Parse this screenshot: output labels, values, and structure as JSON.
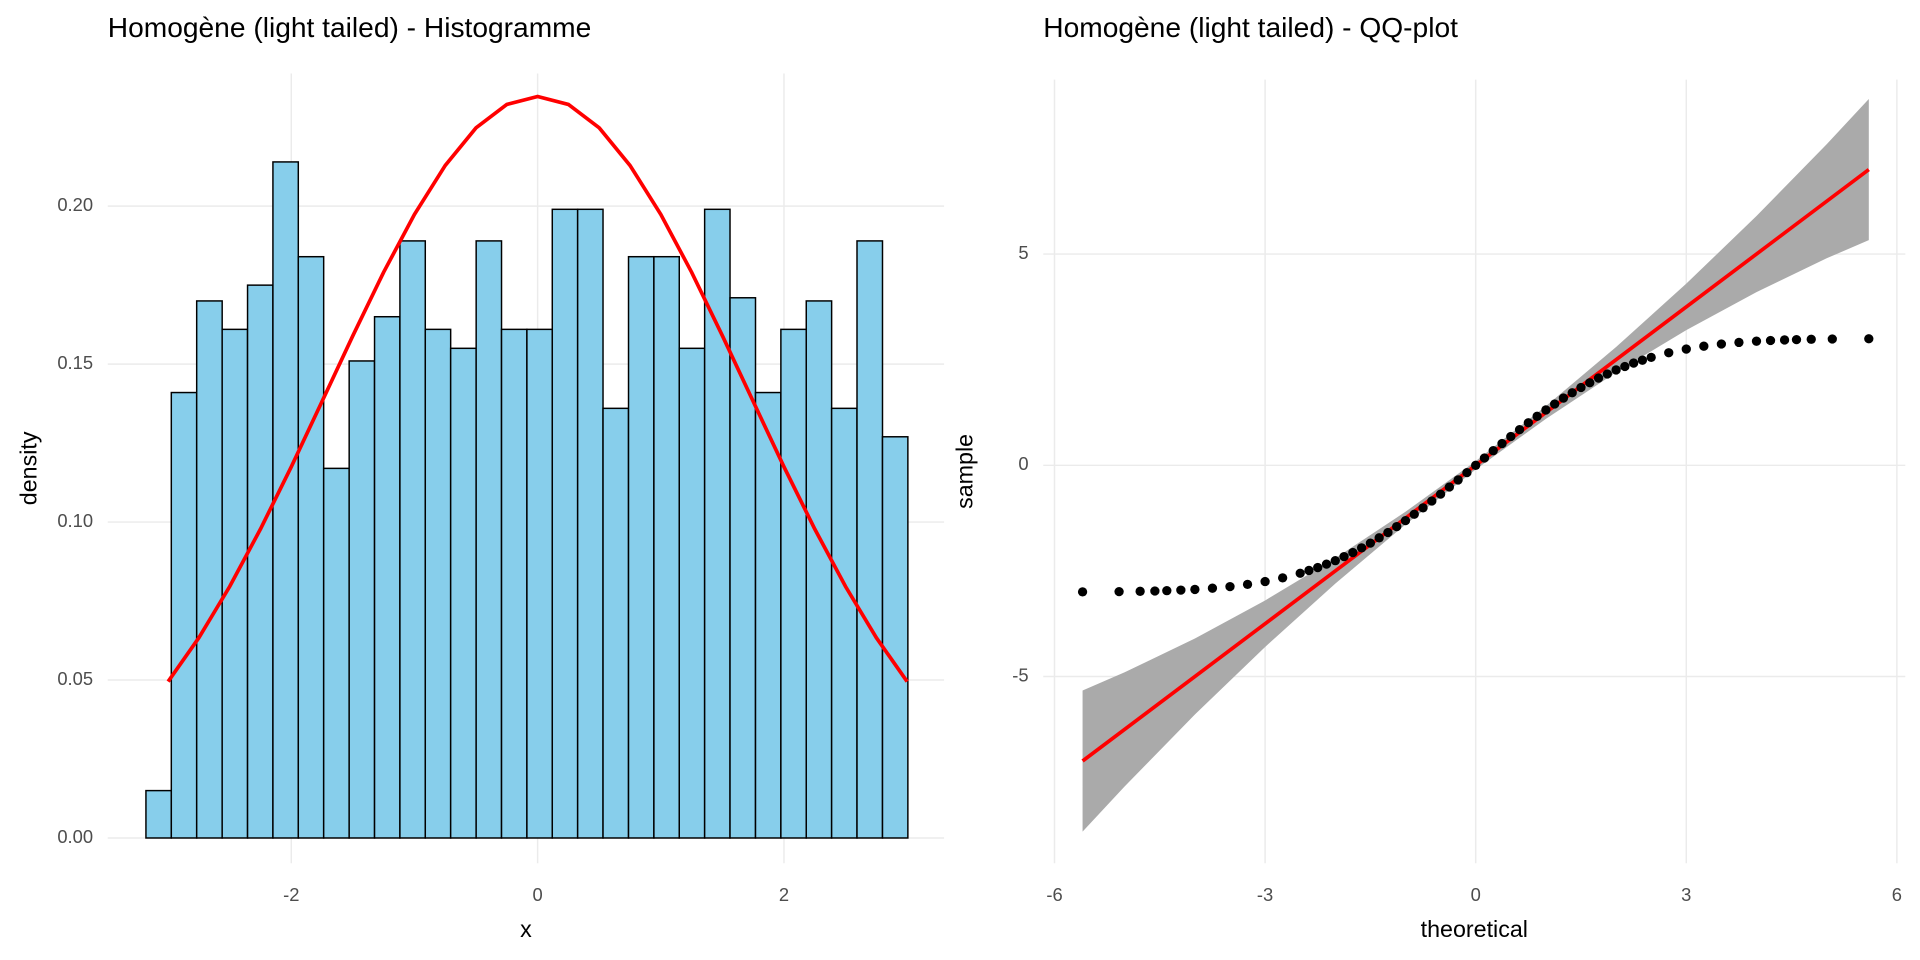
{
  "chart_data": [
    {
      "type": "histogram",
      "title": "Homogène (light tailed) - Histogramme",
      "xlabel": "x",
      "ylabel": "density",
      "bins": [
        -3.18,
        -2.974,
        -2.768,
        -2.561,
        -2.355,
        -2.149,
        -1.943,
        -1.737,
        -1.53,
        -1.324,
        -1.118,
        -0.912,
        -0.706,
        -0.499,
        -0.293,
        -0.087,
        0.119,
        0.325,
        0.531,
        0.738,
        0.944,
        1.15,
        1.356,
        1.562,
        1.769,
        1.975,
        2.181,
        2.387,
        2.593,
        2.8,
        3.006
      ],
      "values": [
        0.015,
        0.141,
        0.17,
        0.161,
        0.175,
        0.214,
        0.184,
        0.117,
        0.151,
        0.165,
        0.189,
        0.161,
        0.155,
        0.189,
        0.161,
        0.161,
        0.199,
        0.199,
        0.136,
        0.184,
        0.184,
        0.155,
        0.199,
        0.171,
        0.141,
        0.161,
        0.17,
        0.136,
        0.189,
        0.127
      ],
      "color": "#87ceeb",
      "density_curve": {
        "color": "#ff0000",
        "x": [
          -3,
          -2.75,
          -2.5,
          -2.25,
          -2,
          -1.75,
          -1.5,
          -1.25,
          -1,
          -0.75,
          -0.5,
          -0.25,
          0,
          0.25,
          0.5,
          0.75,
          1,
          1.25,
          1.5,
          1.75,
          2,
          2.25,
          2.5,
          2.75,
          3
        ],
        "values": [
          0.0495,
          0.0634,
          0.0796,
          0.0978,
          0.1175,
          0.1382,
          0.159,
          0.1791,
          0.1974,
          0.2129,
          0.2248,
          0.2322,
          0.2347,
          0.2322,
          0.2248,
          0.2129,
          0.1974,
          0.1791,
          0.159,
          0.1382,
          0.1175,
          0.0978,
          0.0796,
          0.0634,
          0.0495
        ]
      },
      "xlim": [
        -3.49,
        3.3
      ],
      "ylim": [
        -0.008,
        0.242
      ],
      "xticks": [
        -2,
        0,
        2
      ],
      "yticks": [
        {
          "value": 0,
          "label": "0.00"
        },
        {
          "value": 0.05,
          "label": "0.05"
        },
        {
          "value": 0.1,
          "label": "0.10"
        },
        {
          "value": 0.15,
          "label": "0.15"
        },
        {
          "value": 0.2,
          "label": "0.20"
        }
      ],
      "grid": true
    },
    {
      "type": "qq",
      "title": "Homogène (light tailed) - QQ-plot",
      "xlabel": "theoretical",
      "ylabel": "sample",
      "color": "#000000",
      "x": [
        -5.6,
        -5.08,
        -4.78,
        -4.57,
        -4.4,
        -4.2,
        -4,
        -3.75,
        -3.5,
        -3.25,
        -3,
        -2.75,
        -2.5,
        -2.375,
        -2.25,
        -2.125,
        -2,
        -1.875,
        -1.75,
        -1.625,
        -1.5,
        -1.375,
        -1.25,
        -1.125,
        -1,
        -0.875,
        -0.75,
        -0.625,
        -0.5,
        -0.375,
        -0.25,
        -0.125,
        0,
        0.125,
        0.25,
        0.375,
        0.5,
        0.625,
        0.75,
        0.875,
        1,
        1.125,
        1.25,
        1.375,
        1.5,
        1.625,
        1.75,
        1.875,
        2,
        2.125,
        2.25,
        2.375,
        2.5,
        2.75,
        3,
        3.25,
        3.5,
        3.75,
        4,
        4.2,
        4.4,
        4.57,
        4.78,
        5.08,
        5.6
      ],
      "values": [
        -2.996,
        -2.99,
        -2.983,
        -2.975,
        -2.967,
        -2.954,
        -2.938,
        -2.909,
        -2.871,
        -2.819,
        -2.751,
        -2.665,
        -2.555,
        -2.488,
        -2.42,
        -2.339,
        -2.257,
        -2.161,
        -2.065,
        -1.954,
        -1.842,
        -1.717,
        -1.591,
        -1.451,
        -1.31,
        -1.159,
        -1.007,
        -0.845,
        -0.682,
        -0.514,
        -0.346,
        -0.173,
        0,
        0.173,
        0.346,
        0.514,
        0.682,
        0.845,
        1.007,
        1.159,
        1.31,
        1.451,
        1.591,
        1.717,
        1.842,
        1.954,
        2.065,
        2.161,
        2.257,
        2.339,
        2.42,
        2.488,
        2.555,
        2.665,
        2.751,
        2.819,
        2.871,
        2.909,
        2.938,
        2.954,
        2.967,
        2.975,
        2.983,
        2.99,
        2.996
      ],
      "band": {
        "color": "#aaaaaa",
        "x": [
          -5.6,
          -5,
          -4,
          -3,
          -2,
          -1,
          0,
          1,
          2,
          3,
          4,
          5,
          5.6
        ],
        "upper": [
          -5.33,
          -4.9,
          -4.1,
          -3.2,
          -2.2,
          -1.1,
          0.1,
          1.4,
          2.8,
          4.3,
          5.9,
          7.6,
          8.67
        ],
        "lower": [
          -8.67,
          -7.6,
          -5.9,
          -4.3,
          -2.8,
          -1.4,
          -0.1,
          1.1,
          2.2,
          3.2,
          4.1,
          4.9,
          5.33
        ]
      },
      "line": {
        "color": "#ff0000",
        "x": [
          -5.6,
          5.6
        ],
        "values": [
          -7,
          7
        ]
      },
      "xlim": [
        -6.16,
        6.12
      ],
      "ylim": [
        -9.42,
        9.13
      ],
      "xticks": [
        -6,
        -3,
        0,
        3,
        6
      ],
      "yticks": [
        -5,
        0,
        5
      ],
      "grid": true
    }
  ]
}
